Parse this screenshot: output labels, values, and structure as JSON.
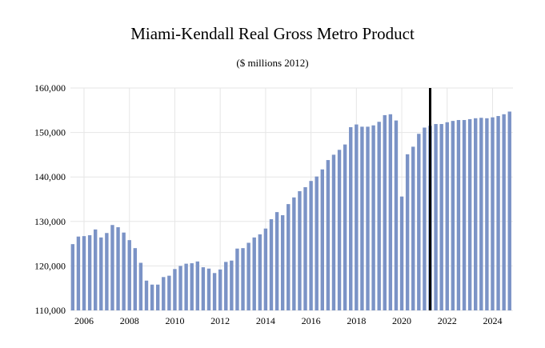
{
  "chart_data": {
    "type": "bar",
    "title": "Miami-Kendall Real Gross Metro Product",
    "subtitle": "($ millions 2012)",
    "xlabel": "",
    "ylabel": "",
    "ylim": [
      110000,
      160000
    ],
    "yticks": [
      110000,
      120000,
      130000,
      140000,
      150000,
      160000
    ],
    "ytick_labels": [
      "110,000",
      "120,000",
      "130,000",
      "140,000",
      "150,000",
      "160,000"
    ],
    "xtick_labels": [
      "2006",
      "2008",
      "2010",
      "2012",
      "2014",
      "2016",
      "2018",
      "2020",
      "2022",
      "2024"
    ],
    "xtick_positions": [
      2006,
      2008,
      2010,
      2012,
      2014,
      2016,
      2018,
      2020,
      2022,
      2024
    ],
    "x_range": [
      2005.4,
      2024.9
    ],
    "bar_color": "#7b93c6",
    "marker_color": "#000000",
    "forecast_marker_x": 2021.25,
    "grid": true,
    "legend": "none",
    "categories": [
      "2005Q2",
      "2005Q3",
      "2005Q4",
      "2006Q1",
      "2006Q2",
      "2006Q3",
      "2006Q4",
      "2007Q1",
      "2007Q2",
      "2007Q3",
      "2007Q4",
      "2008Q1",
      "2008Q2",
      "2008Q3",
      "2008Q4",
      "2009Q1",
      "2009Q2",
      "2009Q3",
      "2009Q4",
      "2010Q1",
      "2010Q2",
      "2010Q3",
      "2010Q4",
      "2011Q1",
      "2011Q2",
      "2011Q3",
      "2011Q4",
      "2012Q1",
      "2012Q2",
      "2012Q3",
      "2012Q4",
      "2013Q1",
      "2013Q2",
      "2013Q3",
      "2013Q4",
      "2014Q1",
      "2014Q2",
      "2014Q3",
      "2014Q4",
      "2015Q1",
      "2015Q2",
      "2015Q3",
      "2015Q4",
      "2016Q1",
      "2016Q2",
      "2016Q3",
      "2016Q4",
      "2017Q1",
      "2017Q2",
      "2017Q3",
      "2017Q4",
      "2018Q1",
      "2018Q2",
      "2018Q3",
      "2018Q4",
      "2019Q1",
      "2019Q2",
      "2019Q3",
      "2019Q4",
      "2020Q1",
      "2020Q2",
      "2020Q3",
      "2020Q4",
      "2021Q1",
      "2021Q2",
      "2021Q3",
      "2021Q4",
      "2022Q1",
      "2022Q2",
      "2022Q3",
      "2022Q4",
      "2023Q1",
      "2023Q2",
      "2023Q3",
      "2023Q4",
      "2024Q1",
      "2024Q2",
      "2024Q3"
    ],
    "x": [
      2005.5,
      2005.75,
      2006.0,
      2006.25,
      2006.5,
      2006.75,
      2007.0,
      2007.25,
      2007.5,
      2007.75,
      2008.0,
      2008.25,
      2008.5,
      2008.75,
      2009.0,
      2009.25,
      2009.5,
      2009.75,
      2010.0,
      2010.25,
      2010.5,
      2010.75,
      2011.0,
      2011.25,
      2011.5,
      2011.75,
      2012.0,
      2012.25,
      2012.5,
      2012.75,
      2013.0,
      2013.25,
      2013.5,
      2013.75,
      2014.0,
      2014.25,
      2014.5,
      2014.75,
      2015.0,
      2015.25,
      2015.5,
      2015.75,
      2016.0,
      2016.25,
      2016.5,
      2016.75,
      2017.0,
      2017.25,
      2017.5,
      2017.75,
      2018.0,
      2018.25,
      2018.5,
      2018.75,
      2019.0,
      2019.25,
      2019.5,
      2019.75,
      2020.0,
      2020.25,
      2020.5,
      2020.75,
      2021.0,
      2021.25,
      2021.5,
      2021.75,
      2022.0,
      2022.25,
      2022.5,
      2022.75,
      2023.0,
      2023.25,
      2023.5,
      2023.75,
      2024.0,
      2024.25,
      2024.5,
      2024.75
    ],
    "values": [
      124900,
      126600,
      126700,
      126900,
      128200,
      126400,
      127400,
      129200,
      128700,
      127500,
      125800,
      124000,
      120700,
      116700,
      115800,
      115800,
      117500,
      117800,
      119300,
      120000,
      120500,
      120600,
      121000,
      119700,
      119400,
      118400,
      119200,
      120900,
      121200,
      123900,
      124000,
      125200,
      126400,
      127100,
      128400,
      130500,
      132100,
      131400,
      133900,
      135400,
      136800,
      137700,
      139100,
      140100,
      141700,
      143800,
      145000,
      146100,
      147300,
      151200,
      151800,
      151300,
      151300,
      151600,
      152400,
      153900,
      154100,
      152700,
      135600,
      145100,
      146800,
      149700,
      151100,
      151500,
      151900,
      151900,
      152300,
      152600,
      152800,
      152800,
      153000,
      153200,
      153300,
      153200,
      153400,
      153700,
      154100,
      154700
    ]
  }
}
